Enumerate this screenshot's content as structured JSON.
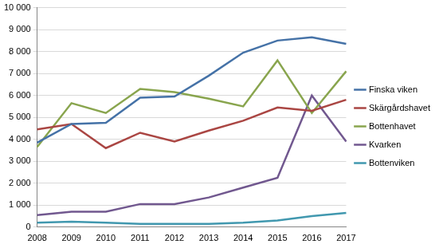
{
  "chart_data": {
    "type": "line",
    "categories": [
      "2008",
      "2009",
      "2010",
      "2011",
      "2012",
      "2013",
      "2014",
      "2015",
      "2016",
      "2017"
    ],
    "series": [
      {
        "name": "Finska viken",
        "color": "#4572a7",
        "values": [
          3850,
          4700,
          4750,
          5900,
          5950,
          6900,
          7950,
          8500,
          8650,
          8350
        ]
      },
      {
        "name": "Skärgårdshavet",
        "color": "#aa4643",
        "values": [
          4450,
          4700,
          3600,
          4300,
          3900,
          4400,
          4850,
          5450,
          5300,
          5800
        ]
      },
      {
        "name": "Bottenhavet",
        "color": "#89a54e",
        "values": [
          3650,
          5650,
          5200,
          6300,
          6150,
          5850,
          5500,
          7600,
          5200,
          7100
        ]
      },
      {
        "name": "Kvarken",
        "color": "#71588f",
        "values": [
          550,
          700,
          700,
          1050,
          1050,
          1350,
          1800,
          2250,
          6000,
          3900
        ]
      },
      {
        "name": "Bottenviken",
        "color": "#4198af",
        "values": [
          200,
          250,
          200,
          150,
          150,
          150,
          200,
          300,
          500,
          650
        ]
      }
    ],
    "ylim": [
      0,
      10000
    ],
    "yticks": [
      0,
      {
        "value": 1000,
        "label": "1 000"
      },
      {
        "value": 2000,
        "label": "2 000"
      },
      {
        "value": 3000,
        "label": "3 000"
      },
      {
        "value": 4000,
        "label": "4 000"
      },
      {
        "value": 5000,
        "label": "5 000"
      },
      {
        "value": 6000,
        "label": "6 000"
      },
      {
        "value": 7000,
        "label": "7 000"
      },
      {
        "value": 8000,
        "label": "8 000"
      },
      {
        "value": 9000,
        "label": "9 000"
      },
      {
        "value": 10000,
        "label": "10 000"
      }
    ],
    "grid": true,
    "legend": "right"
  }
}
